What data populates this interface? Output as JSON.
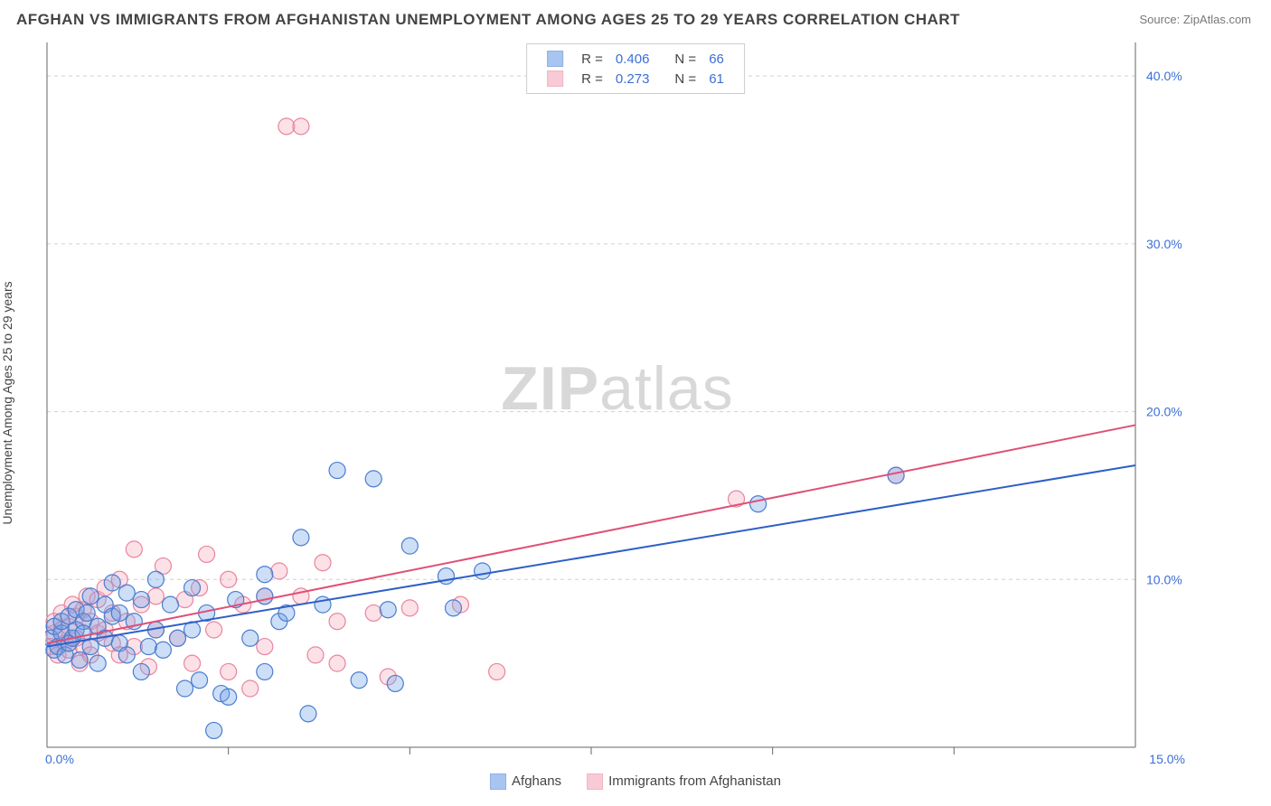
{
  "title": "AFGHAN VS IMMIGRANTS FROM AFGHANISTAN UNEMPLOYMENT AMONG AGES 25 TO 29 YEARS CORRELATION CHART",
  "source": "Source: ZipAtlas.com",
  "y_axis_label": "Unemployment Among Ages 25 to 29 years",
  "watermark_bold": "ZIP",
  "watermark_light": "atlas",
  "chart": {
    "type": "scatter",
    "xlim": [
      0,
      15
    ],
    "ylim": [
      0,
      42
    ],
    "x_ticks": [
      0,
      15
    ],
    "x_tick_labels": [
      "0.0%",
      "15.0%"
    ],
    "y_ticks": [
      10,
      20,
      30,
      40
    ],
    "y_tick_labels": [
      "10.0%",
      "20.0%",
      "30.0%",
      "40.0%"
    ],
    "x_grid_dividers": [
      2.5,
      5.0,
      7.5,
      10.0,
      12.5
    ],
    "background_color": "#ffffff",
    "grid_color": "#d0d0d0",
    "axis_color": "#666666",
    "tick_label_color": "#3b6fd6",
    "marker_radius": 9,
    "marker_fill_opacity": 0.35,
    "marker_stroke_width": 1.2,
    "line_width": 2,
    "series": [
      {
        "name": "Afghans",
        "color": "#6fa0e8",
        "stroke": "#4a7dd0",
        "line_color": "#2e5fc9",
        "R": "0.406",
        "N": "66",
        "trend": {
          "x1": 0,
          "y1": 6.0,
          "x2": 15,
          "y2": 16.8
        },
        "points": [
          [
            0.05,
            6.5
          ],
          [
            0.1,
            5.8
          ],
          [
            0.1,
            7.2
          ],
          [
            0.15,
            6.0
          ],
          [
            0.2,
            6.8
          ],
          [
            0.2,
            7.5
          ],
          [
            0.25,
            5.5
          ],
          [
            0.3,
            6.2
          ],
          [
            0.3,
            7.8
          ],
          [
            0.35,
            6.5
          ],
          [
            0.4,
            7.0
          ],
          [
            0.4,
            8.2
          ],
          [
            0.45,
            5.2
          ],
          [
            0.5,
            7.5
          ],
          [
            0.5,
            6.8
          ],
          [
            0.55,
            8.0
          ],
          [
            0.6,
            6.0
          ],
          [
            0.6,
            9.0
          ],
          [
            0.7,
            7.2
          ],
          [
            0.7,
            5.0
          ],
          [
            0.8,
            8.5
          ],
          [
            0.8,
            6.5
          ],
          [
            0.9,
            7.8
          ],
          [
            0.9,
            9.8
          ],
          [
            1.0,
            6.2
          ],
          [
            1.0,
            8.0
          ],
          [
            1.1,
            5.5
          ],
          [
            1.1,
            9.2
          ],
          [
            1.2,
            7.5
          ],
          [
            1.3,
            4.5
          ],
          [
            1.3,
            8.8
          ],
          [
            1.4,
            6.0
          ],
          [
            1.5,
            7.0
          ],
          [
            1.5,
            10.0
          ],
          [
            1.6,
            5.8
          ],
          [
            1.7,
            8.5
          ],
          [
            1.8,
            6.5
          ],
          [
            1.9,
            3.5
          ],
          [
            2.0,
            9.5
          ],
          [
            2.0,
            7.0
          ],
          [
            2.1,
            4.0
          ],
          [
            2.2,
            8.0
          ],
          [
            2.3,
            1.0
          ],
          [
            2.4,
            3.2
          ],
          [
            2.5,
            3.0
          ],
          [
            2.6,
            8.8
          ],
          [
            2.8,
            6.5
          ],
          [
            3.0,
            9.0
          ],
          [
            3.0,
            4.5
          ],
          [
            3.0,
            10.3
          ],
          [
            3.2,
            7.5
          ],
          [
            3.3,
            8.0
          ],
          [
            3.5,
            12.5
          ],
          [
            3.6,
            2.0
          ],
          [
            3.8,
            8.5
          ],
          [
            4.0,
            16.5
          ],
          [
            4.3,
            4.0
          ],
          [
            4.5,
            16.0
          ],
          [
            4.7,
            8.2
          ],
          [
            4.8,
            3.8
          ],
          [
            5.0,
            12.0
          ],
          [
            5.5,
            10.2
          ],
          [
            5.6,
            8.3
          ],
          [
            6.0,
            10.5
          ],
          [
            9.8,
            14.5
          ],
          [
            11.7,
            16.2
          ]
        ]
      },
      {
        "name": "Immigrants from Afghanistan",
        "color": "#f5a8bb",
        "stroke": "#e8859e",
        "line_color": "#e04f77",
        "R": "0.273",
        "N": "61",
        "trend": {
          "x1": 0,
          "y1": 6.2,
          "x2": 15,
          "y2": 19.2
        },
        "points": [
          [
            0.05,
            6.0
          ],
          [
            0.1,
            6.8
          ],
          [
            0.1,
            7.5
          ],
          [
            0.15,
            5.5
          ],
          [
            0.2,
            7.0
          ],
          [
            0.2,
            8.0
          ],
          [
            0.25,
            6.2
          ],
          [
            0.3,
            7.2
          ],
          [
            0.3,
            5.8
          ],
          [
            0.35,
            8.5
          ],
          [
            0.4,
            6.5
          ],
          [
            0.4,
            7.8
          ],
          [
            0.45,
            5.0
          ],
          [
            0.5,
            8.2
          ],
          [
            0.5,
            6.0
          ],
          [
            0.55,
            9.0
          ],
          [
            0.6,
            7.5
          ],
          [
            0.6,
            5.5
          ],
          [
            0.7,
            8.8
          ],
          [
            0.7,
            6.8
          ],
          [
            0.8,
            7.0
          ],
          [
            0.8,
            9.5
          ],
          [
            0.9,
            6.2
          ],
          [
            0.9,
            8.0
          ],
          [
            1.0,
            5.5
          ],
          [
            1.0,
            10.0
          ],
          [
            1.1,
            7.5
          ],
          [
            1.2,
            6.0
          ],
          [
            1.2,
            11.8
          ],
          [
            1.3,
            8.5
          ],
          [
            1.4,
            4.8
          ],
          [
            1.5,
            9.0
          ],
          [
            1.5,
            7.0
          ],
          [
            1.6,
            10.8
          ],
          [
            1.8,
            6.5
          ],
          [
            1.9,
            8.8
          ],
          [
            2.0,
            5.0
          ],
          [
            2.1,
            9.5
          ],
          [
            2.2,
            11.5
          ],
          [
            2.3,
            7.0
          ],
          [
            2.5,
            4.5
          ],
          [
            2.5,
            10.0
          ],
          [
            2.7,
            8.5
          ],
          [
            2.8,
            3.5
          ],
          [
            3.0,
            9.0
          ],
          [
            3.0,
            6.0
          ],
          [
            3.2,
            10.5
          ],
          [
            3.3,
            37.0
          ],
          [
            3.5,
            9.0
          ],
          [
            3.5,
            37.0
          ],
          [
            3.7,
            5.5
          ],
          [
            3.8,
            11.0
          ],
          [
            4.0,
            7.5
          ],
          [
            4.0,
            5.0
          ],
          [
            4.5,
            8.0
          ],
          [
            4.7,
            4.2
          ],
          [
            5.0,
            8.3
          ],
          [
            5.7,
            8.5
          ],
          [
            6.2,
            4.5
          ],
          [
            9.5,
            14.8
          ],
          [
            11.7,
            16.2
          ]
        ]
      }
    ]
  },
  "legend_top": {
    "r_label": "R =",
    "n_label": "N ="
  },
  "legend_bottom_labels": [
    "Afghans",
    "Immigrants from Afghanistan"
  ]
}
